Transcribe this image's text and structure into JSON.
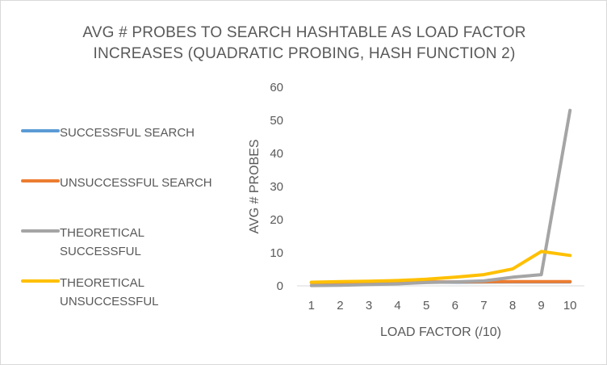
{
  "chart_data": {
    "type": "line",
    "title_lines": [
      "AVG # PROBES TO SEARCH HASHTABLE AS LOAD FACTOR",
      "INCREASES (QUADRATIC PROBING, HASH FUNCTION 2)"
    ],
    "xlabel": "LOAD FACTOR (/10)",
    "ylabel": "AVG # PROBES",
    "categories": [
      "1",
      "2",
      "3",
      "4",
      "5",
      "6",
      "7",
      "8",
      "9",
      "10"
    ],
    "ylim": [
      0,
      60
    ],
    "yticks": [
      "0",
      "10",
      "20",
      "30",
      "40",
      "50",
      "60"
    ],
    "grid": false,
    "legend_position": "left",
    "series": [
      {
        "name": "SUCCESSFUL SEARCH",
        "color": "#5B9BD5",
        "values": [
          1.0,
          1.0,
          1.0,
          1.05,
          1.1,
          1.1,
          1.15,
          1.2,
          1.2,
          1.2
        ]
      },
      {
        "name": "UNSUCCESSFUL SEARCH",
        "color": "#ED7D31",
        "values": [
          1.0,
          1.05,
          1.1,
          1.15,
          1.2,
          1.2,
          1.25,
          1.3,
          1.3,
          1.3
        ]
      },
      {
        "name": "THEORETICAL SUCCESSFUL",
        "color": "#A5A5A5",
        "values": [
          0.1,
          0.2,
          0.4,
          0.6,
          1.0,
          1.2,
          1.5,
          2.6,
          3.4,
          53.0
        ]
      },
      {
        "name": "THEORETICAL UNSUCCESSFUL",
        "color": "#FFC000",
        "values": [
          1.1,
          1.3,
          1.4,
          1.6,
          2.0,
          2.6,
          3.4,
          5.1,
          10.4,
          9.2
        ]
      }
    ],
    "legend_labels": [
      [
        "SUCCESSFUL SEARCH"
      ],
      [
        "UNSUCCESSFUL SEARCH"
      ],
      [
        "THEORETICAL",
        "SUCCESSFUL"
      ],
      [
        "THEORETICAL",
        "UNSUCCESSFUL"
      ]
    ]
  }
}
